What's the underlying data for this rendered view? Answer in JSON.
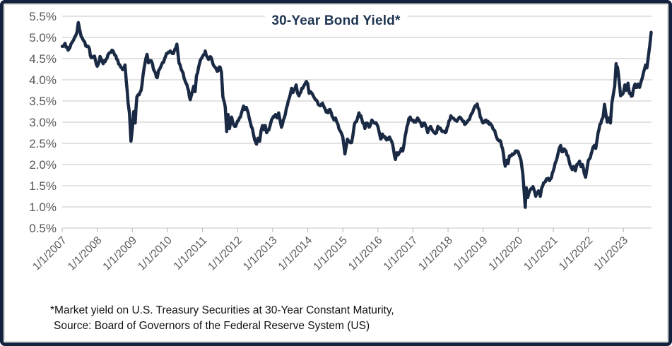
{
  "chart": {
    "title": "30-Year Bond Yield*",
    "footnote_line1": "*Market yield on U.S. Treasury Securities at 30-Year Constant Maturity,",
    "footnote_line2": "Source: Board of Governors of the Federal Reserve System (US)",
    "colors": {
      "line": "#1a2a44",
      "title": "#1e3552",
      "axis_label": "#595959",
      "gridline": "#d9d9d9",
      "tick": "#bfbfbf",
      "border": "#13233d",
      "background": "#ffffff"
    }
  },
  "chart_data": {
    "type": "line",
    "title": "30-Year Bond Yield*",
    "series_name": "30-Year Bond Yield",
    "unit": "%",
    "x_unit": "decimal_year",
    "grid": true,
    "legend": false,
    "ylim": [
      0.5,
      5.5
    ],
    "xlim": [
      2007.0,
      2023.8
    ],
    "y_ticks": [
      0.5,
      1.0,
      1.5,
      2.0,
      2.5,
      3.0,
      3.5,
      4.0,
      4.5,
      5.0,
      5.5
    ],
    "y_tick_labels": [
      "0.5%",
      "1.0%",
      "1.5%",
      "2.0%",
      "2.5%",
      "3.0%",
      "3.5%",
      "4.0%",
      "4.5%",
      "5.0%",
      "5.5%"
    ],
    "x_tick_years": [
      2007,
      2008,
      2009,
      2010,
      2011,
      2012,
      2013,
      2014,
      2015,
      2016,
      2017,
      2018,
      2019,
      2020,
      2021,
      2022,
      2023
    ],
    "x_tick_labels": [
      "1/1/2007",
      "1/1/2008",
      "1/1/2009",
      "1/1/2010",
      "1/1/2011",
      "1/1/2012",
      "1/1/2013",
      "1/1/2014",
      "1/1/2015",
      "1/1/2016",
      "1/1/2017",
      "1/1/2018",
      "1/1/2019",
      "1/1/2020",
      "1/1/2021",
      "1/1/2022",
      "1/1/2023"
    ],
    "points": [
      [
        2007.0,
        4.79
      ],
      [
        2007.08,
        4.86
      ],
      [
        2007.17,
        4.7
      ],
      [
        2007.25,
        4.84
      ],
      [
        2007.33,
        4.95
      ],
      [
        2007.42,
        5.12
      ],
      [
        2007.46,
        5.35
      ],
      [
        2007.5,
        5.18
      ],
      [
        2007.54,
        5.03
      ],
      [
        2007.58,
        4.97
      ],
      [
        2007.67,
        4.8
      ],
      [
        2007.75,
        4.78
      ],
      [
        2007.83,
        4.52
      ],
      [
        2007.92,
        4.56
      ],
      [
        2008.0,
        4.32
      ],
      [
        2008.08,
        4.55
      ],
      [
        2008.17,
        4.38
      ],
      [
        2008.25,
        4.48
      ],
      [
        2008.33,
        4.62
      ],
      [
        2008.42,
        4.7
      ],
      [
        2008.5,
        4.58
      ],
      [
        2008.58,
        4.47
      ],
      [
        2008.67,
        4.3
      ],
      [
        2008.75,
        4.25
      ],
      [
        2008.79,
        4.35
      ],
      [
        2008.83,
        3.95
      ],
      [
        2008.88,
        3.45
      ],
      [
        2008.92,
        3.2
      ],
      [
        2008.96,
        2.55
      ],
      [
        2009.0,
        2.85
      ],
      [
        2009.04,
        3.25
      ],
      [
        2009.08,
        2.98
      ],
      [
        2009.13,
        3.6
      ],
      [
        2009.17,
        3.65
      ],
      [
        2009.25,
        3.75
      ],
      [
        2009.33,
        4.25
      ],
      [
        2009.42,
        4.6
      ],
      [
        2009.46,
        4.4
      ],
      [
        2009.54,
        4.45
      ],
      [
        2009.63,
        4.2
      ],
      [
        2009.71,
        4.05
      ],
      [
        2009.75,
        4.22
      ],
      [
        2009.83,
        4.35
      ],
      [
        2009.92,
        4.5
      ],
      [
        2010.0,
        4.62
      ],
      [
        2010.08,
        4.68
      ],
      [
        2010.17,
        4.62
      ],
      [
        2010.21,
        4.72
      ],
      [
        2010.27,
        4.84
      ],
      [
        2010.33,
        4.4
      ],
      [
        2010.42,
        4.2
      ],
      [
        2010.5,
        3.98
      ],
      [
        2010.58,
        3.8
      ],
      [
        2010.65,
        3.53
      ],
      [
        2010.71,
        3.72
      ],
      [
        2010.75,
        3.85
      ],
      [
        2010.79,
        3.72
      ],
      [
        2010.83,
        4.1
      ],
      [
        2010.92,
        4.4
      ],
      [
        2011.0,
        4.55
      ],
      [
        2011.08,
        4.68
      ],
      [
        2011.13,
        4.55
      ],
      [
        2011.17,
        4.48
      ],
      [
        2011.25,
        4.52
      ],
      [
        2011.33,
        4.32
      ],
      [
        2011.42,
        4.2
      ],
      [
        2011.5,
        4.3
      ],
      [
        2011.54,
        4.18
      ],
      [
        2011.58,
        3.6
      ],
      [
        2011.65,
        3.35
      ],
      [
        2011.69,
        2.78
      ],
      [
        2011.73,
        3.18
      ],
      [
        2011.77,
        2.85
      ],
      [
        2011.83,
        3.12
      ],
      [
        2011.88,
        2.95
      ],
      [
        2011.92,
        2.9
      ],
      [
        2012.0,
        3.03
      ],
      [
        2012.08,
        3.12
      ],
      [
        2012.17,
        3.38
      ],
      [
        2012.21,
        3.3
      ],
      [
        2012.25,
        3.35
      ],
      [
        2012.33,
        3.1
      ],
      [
        2012.42,
        2.85
      ],
      [
        2012.46,
        2.68
      ],
      [
        2012.54,
        2.48
      ],
      [
        2012.58,
        2.62
      ],
      [
        2012.63,
        2.55
      ],
      [
        2012.67,
        2.8
      ],
      [
        2012.71,
        2.92
      ],
      [
        2012.75,
        2.82
      ],
      [
        2012.79,
        2.92
      ],
      [
        2012.83,
        2.75
      ],
      [
        2012.92,
        2.9
      ],
      [
        2013.0,
        3.1
      ],
      [
        2013.08,
        3.18
      ],
      [
        2013.13,
        3.1
      ],
      [
        2013.17,
        3.22
      ],
      [
        2013.25,
        2.88
      ],
      [
        2013.33,
        3.1
      ],
      [
        2013.42,
        3.4
      ],
      [
        2013.5,
        3.65
      ],
      [
        2013.54,
        3.8
      ],
      [
        2013.58,
        3.7
      ],
      [
        2013.67,
        3.88
      ],
      [
        2013.71,
        3.68
      ],
      [
        2013.75,
        3.62
      ],
      [
        2013.83,
        3.8
      ],
      [
        2013.92,
        3.9
      ],
      [
        2013.96,
        3.96
      ],
      [
        2014.0,
        3.9
      ],
      [
        2014.04,
        3.68
      ],
      [
        2014.08,
        3.72
      ],
      [
        2014.17,
        3.6
      ],
      [
        2014.25,
        3.52
      ],
      [
        2014.33,
        3.4
      ],
      [
        2014.42,
        3.45
      ],
      [
        2014.5,
        3.3
      ],
      [
        2014.58,
        3.22
      ],
      [
        2014.63,
        3.3
      ],
      [
        2014.67,
        3.22
      ],
      [
        2014.75,
        3.05
      ],
      [
        2014.79,
        3.1
      ],
      [
        2014.83,
        3.0
      ],
      [
        2014.92,
        2.8
      ],
      [
        2015.0,
        2.65
      ],
      [
        2015.06,
        2.25
      ],
      [
        2015.13,
        2.6
      ],
      [
        2015.17,
        2.55
      ],
      [
        2015.25,
        2.52
      ],
      [
        2015.29,
        2.7
      ],
      [
        2015.33,
        2.95
      ],
      [
        2015.42,
        3.1
      ],
      [
        2015.46,
        3.22
      ],
      [
        2015.54,
        3.08
      ],
      [
        2015.63,
        2.85
      ],
      [
        2015.67,
        2.98
      ],
      [
        2015.75,
        2.88
      ],
      [
        2015.83,
        3.05
      ],
      [
        2015.92,
        2.98
      ],
      [
        2016.0,
        2.9
      ],
      [
        2016.04,
        2.75
      ],
      [
        2016.08,
        2.6
      ],
      [
        2016.13,
        2.72
      ],
      [
        2016.17,
        2.65
      ],
      [
        2016.25,
        2.58
      ],
      [
        2016.33,
        2.65
      ],
      [
        2016.42,
        2.48
      ],
      [
        2016.5,
        2.12
      ],
      [
        2016.54,
        2.28
      ],
      [
        2016.58,
        2.23
      ],
      [
        2016.67,
        2.38
      ],
      [
        2016.71,
        2.32
      ],
      [
        2016.75,
        2.5
      ],
      [
        2016.83,
        2.9
      ],
      [
        2016.88,
        3.08
      ],
      [
        2016.92,
        3.12
      ],
      [
        2017.0,
        3.05
      ],
      [
        2017.08,
        3.0
      ],
      [
        2017.13,
        3.1
      ],
      [
        2017.17,
        3.05
      ],
      [
        2017.25,
        2.9
      ],
      [
        2017.33,
        2.98
      ],
      [
        2017.42,
        2.75
      ],
      [
        2017.5,
        2.9
      ],
      [
        2017.58,
        2.78
      ],
      [
        2017.67,
        2.75
      ],
      [
        2017.71,
        2.9
      ],
      [
        2017.75,
        2.85
      ],
      [
        2017.83,
        2.78
      ],
      [
        2017.92,
        2.75
      ],
      [
        2018.0,
        2.92
      ],
      [
        2018.08,
        3.15
      ],
      [
        2018.17,
        3.08
      ],
      [
        2018.25,
        3.02
      ],
      [
        2018.33,
        3.12
      ],
      [
        2018.42,
        3.02
      ],
      [
        2018.5,
        2.96
      ],
      [
        2018.58,
        3.05
      ],
      [
        2018.67,
        3.2
      ],
      [
        2018.75,
        3.35
      ],
      [
        2018.83,
        3.43
      ],
      [
        2018.88,
        3.3
      ],
      [
        2018.92,
        3.12
      ],
      [
        2019.0,
        2.98
      ],
      [
        2019.08,
        3.05
      ],
      [
        2019.17,
        2.95
      ],
      [
        2019.25,
        2.92
      ],
      [
        2019.33,
        2.8
      ],
      [
        2019.42,
        2.58
      ],
      [
        2019.5,
        2.55
      ],
      [
        2019.58,
        2.25
      ],
      [
        2019.63,
        1.96
      ],
      [
        2019.67,
        2.1
      ],
      [
        2019.71,
        2.02
      ],
      [
        2019.75,
        2.2
      ],
      [
        2019.83,
        2.25
      ],
      [
        2019.92,
        2.32
      ],
      [
        2020.0,
        2.3
      ],
      [
        2020.08,
        2.1
      ],
      [
        2020.13,
        1.8
      ],
      [
        2020.17,
        1.35
      ],
      [
        2020.2,
        0.99
      ],
      [
        2020.23,
        1.45
      ],
      [
        2020.27,
        1.22
      ],
      [
        2020.33,
        1.38
      ],
      [
        2020.42,
        1.48
      ],
      [
        2020.46,
        1.38
      ],
      [
        2020.5,
        1.25
      ],
      [
        2020.58,
        1.38
      ],
      [
        2020.63,
        1.25
      ],
      [
        2020.67,
        1.45
      ],
      [
        2020.75,
        1.58
      ],
      [
        2020.83,
        1.65
      ],
      [
        2020.92,
        1.66
      ],
      [
        2021.0,
        1.85
      ],
      [
        2021.08,
        2.08
      ],
      [
        2021.17,
        2.38
      ],
      [
        2021.21,
        2.45
      ],
      [
        2021.25,
        2.3
      ],
      [
        2021.33,
        2.35
      ],
      [
        2021.42,
        2.2
      ],
      [
        2021.5,
        1.95
      ],
      [
        2021.54,
        1.88
      ],
      [
        2021.58,
        1.95
      ],
      [
        2021.63,
        1.85
      ],
      [
        2021.67,
        2.0
      ],
      [
        2021.75,
        2.08
      ],
      [
        2021.79,
        1.95
      ],
      [
        2021.83,
        2.0
      ],
      [
        2021.88,
        1.8
      ],
      [
        2021.92,
        1.7
      ],
      [
        2021.96,
        1.9
      ],
      [
        2022.0,
        2.1
      ],
      [
        2022.08,
        2.25
      ],
      [
        2022.13,
        2.4
      ],
      [
        2022.17,
        2.45
      ],
      [
        2022.21,
        2.38
      ],
      [
        2022.25,
        2.6
      ],
      [
        2022.33,
        2.95
      ],
      [
        2022.38,
        3.05
      ],
      [
        2022.42,
        3.12
      ],
      [
        2022.46,
        3.42
      ],
      [
        2022.5,
        3.18
      ],
      [
        2022.54,
        3.0
      ],
      [
        2022.58,
        3.1
      ],
      [
        2022.63,
        2.98
      ],
      [
        2022.67,
        3.45
      ],
      [
        2022.71,
        3.65
      ],
      [
        2022.75,
        3.85
      ],
      [
        2022.79,
        4.38
      ],
      [
        2022.81,
        4.1
      ],
      [
        2022.83,
        4.3
      ],
      [
        2022.88,
        3.95
      ],
      [
        2022.92,
        3.62
      ],
      [
        2023.0,
        3.7
      ],
      [
        2023.04,
        3.88
      ],
      [
        2023.08,
        3.75
      ],
      [
        2023.13,
        3.92
      ],
      [
        2023.17,
        3.68
      ],
      [
        2023.25,
        3.62
      ],
      [
        2023.29,
        3.8
      ],
      [
        2023.33,
        3.9
      ],
      [
        2023.38,
        3.82
      ],
      [
        2023.42,
        3.9
      ],
      [
        2023.46,
        3.82
      ],
      [
        2023.5,
        3.95
      ],
      [
        2023.54,
        4.05
      ],
      [
        2023.58,
        4.2
      ],
      [
        2023.63,
        4.35
      ],
      [
        2023.67,
        4.28
      ],
      [
        2023.71,
        4.55
      ],
      [
        2023.75,
        4.8
      ],
      [
        2023.79,
        5.12
      ]
    ]
  }
}
